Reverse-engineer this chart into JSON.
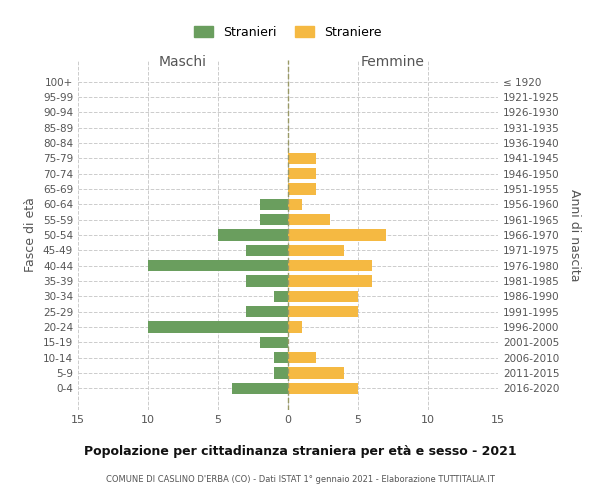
{
  "age_groups": [
    "100+",
    "95-99",
    "90-94",
    "85-89",
    "80-84",
    "75-79",
    "70-74",
    "65-69",
    "60-64",
    "55-59",
    "50-54",
    "45-49",
    "40-44",
    "35-39",
    "30-34",
    "25-29",
    "20-24",
    "15-19",
    "10-14",
    "5-9",
    "0-4"
  ],
  "birth_years": [
    "≤ 1920",
    "1921-1925",
    "1926-1930",
    "1931-1935",
    "1936-1940",
    "1941-1945",
    "1946-1950",
    "1951-1955",
    "1956-1960",
    "1961-1965",
    "1966-1970",
    "1971-1975",
    "1976-1980",
    "1981-1985",
    "1986-1990",
    "1991-1995",
    "1996-2000",
    "2001-2005",
    "2006-2010",
    "2011-2015",
    "2016-2020"
  ],
  "males": [
    0,
    0,
    0,
    0,
    0,
    0,
    0,
    0,
    2,
    2,
    5,
    3,
    10,
    3,
    1,
    3,
    10,
    2,
    1,
    1,
    4
  ],
  "females": [
    0,
    0,
    0,
    0,
    0,
    2,
    2,
    2,
    1,
    3,
    7,
    4,
    6,
    6,
    5,
    5,
    1,
    0,
    2,
    4,
    5
  ],
  "male_color": "#6a9e5e",
  "female_color": "#f5b942",
  "background_color": "#ffffff",
  "grid_color": "#cccccc",
  "title": "Popolazione per cittadinanza straniera per età e sesso - 2021",
  "subtitle": "COMUNE DI CASLINO D'ERBA (CO) - Dati ISTAT 1° gennaio 2021 - Elaborazione TUTTITALIA.IT",
  "xlabel_left": "Maschi",
  "xlabel_right": "Femmine",
  "ylabel_left": "Fasce di età",
  "ylabel_right": "Anni di nascita",
  "legend_male": "Stranieri",
  "legend_female": "Straniere",
  "xlim": 15,
  "center_line_color": "#999966"
}
